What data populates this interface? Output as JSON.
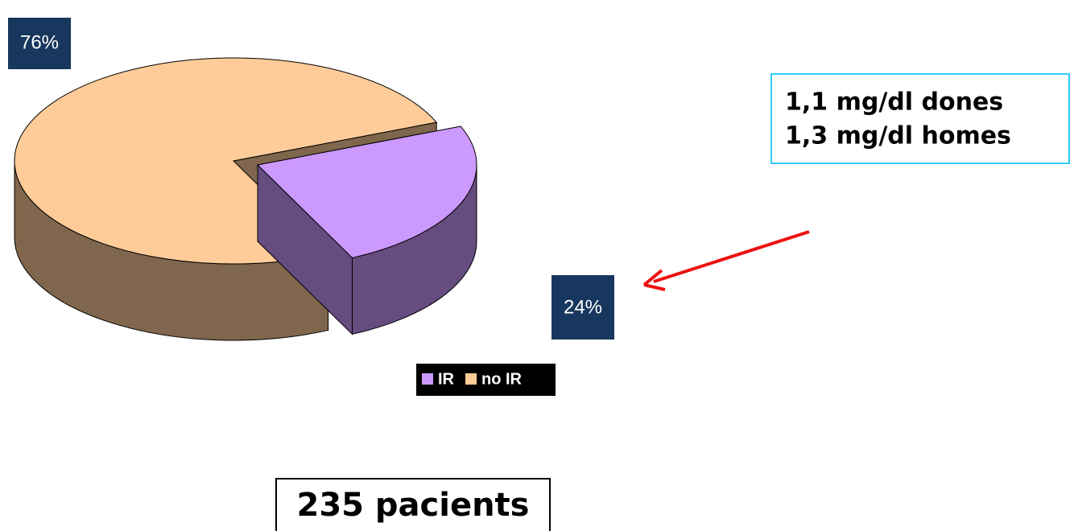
{
  "chart_data": {
    "type": "pie",
    "categories": [
      "IR",
      "no IR"
    ],
    "values": [
      24,
      76
    ],
    "value_labels": [
      "24%",
      "76%"
    ],
    "colors": [
      "#cc99ff",
      "#ffcc99"
    ],
    "annotations": [
      "1,1 mg/dl dones",
      "1,3 mg/dl homes",
      "235 pacients"
    ]
  }
}
